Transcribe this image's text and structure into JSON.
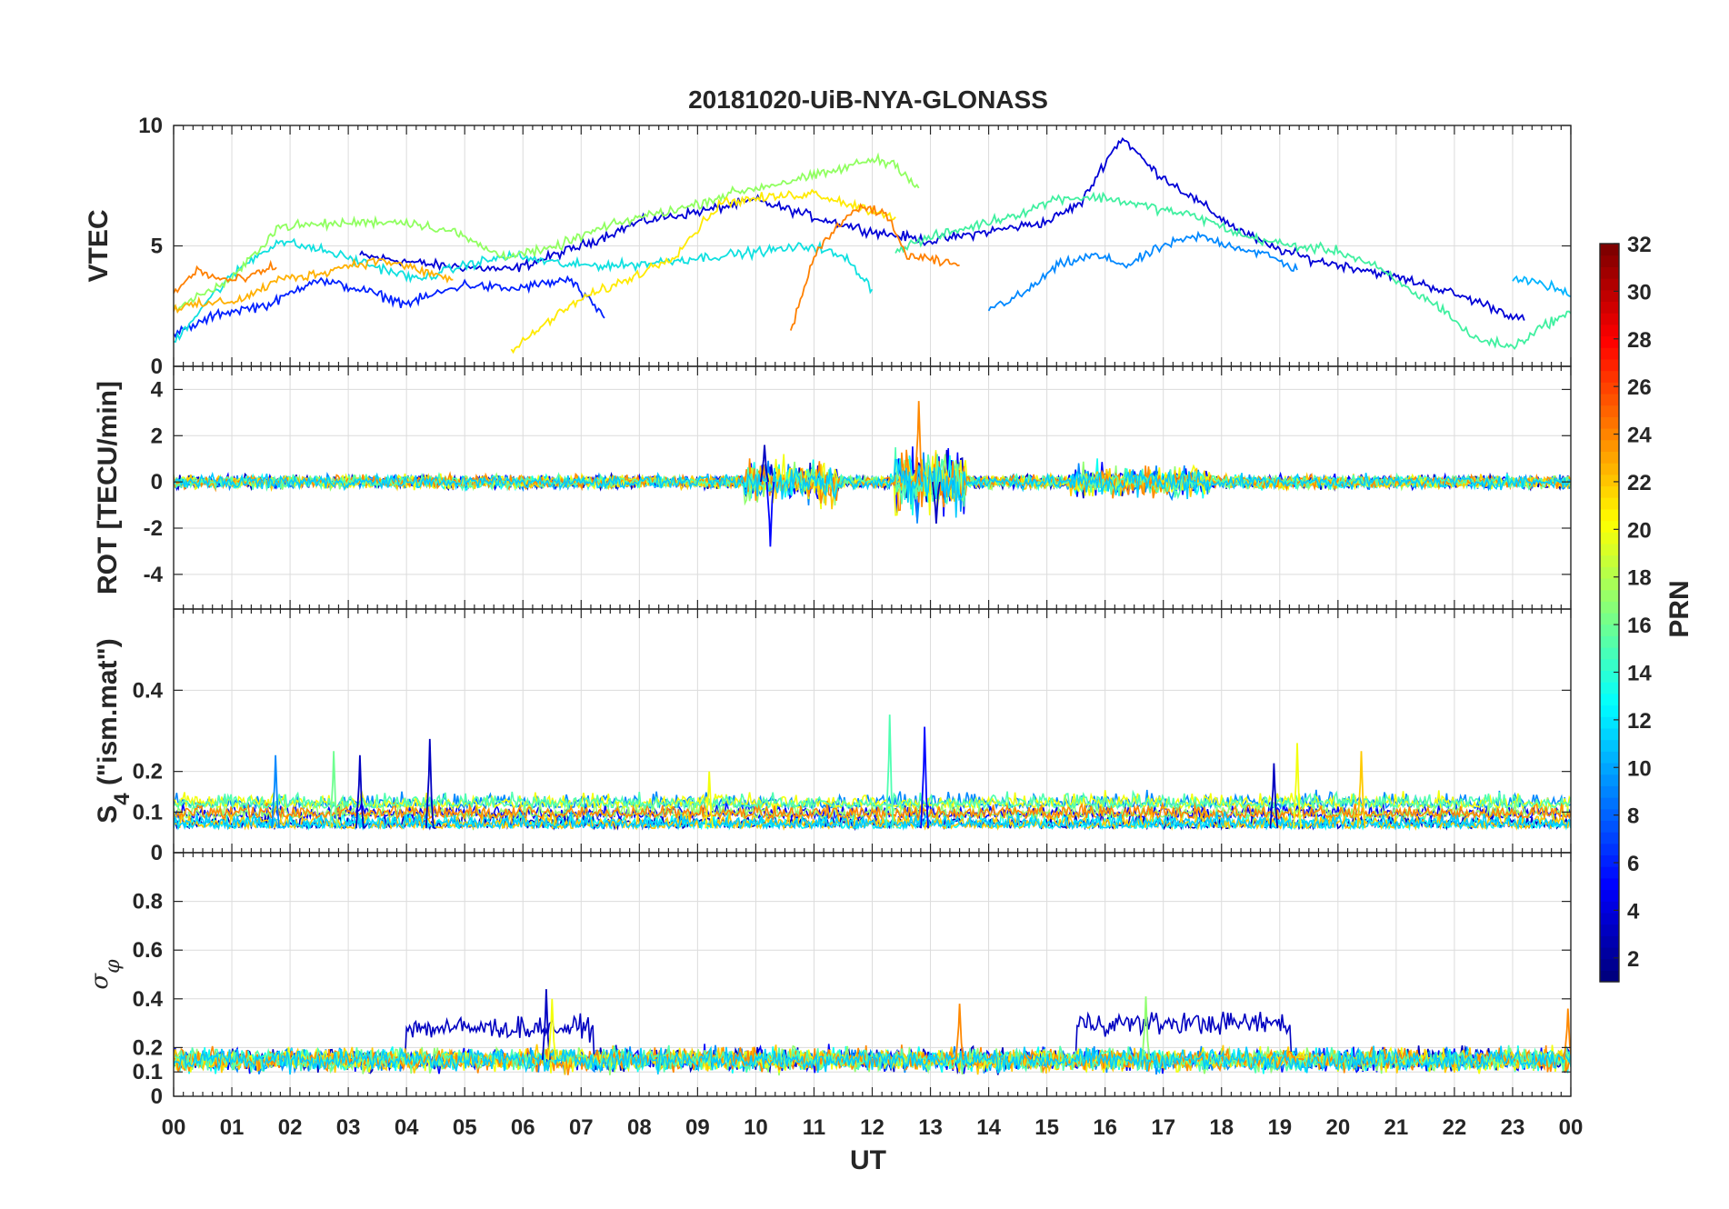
{
  "chart_data": {
    "type": "line",
    "title": "20181020-UiB-NYA-GLONASS",
    "xlabel": "UT",
    "x_ticks": [
      "00",
      "01",
      "02",
      "03",
      "04",
      "05",
      "06",
      "07",
      "08",
      "09",
      "10",
      "11",
      "12",
      "13",
      "14",
      "15",
      "16",
      "17",
      "18",
      "19",
      "20",
      "21",
      "22",
      "23",
      "00"
    ],
    "xlim_hours": [
      0,
      24
    ],
    "grid": true,
    "colorbar": {
      "label": "PRN",
      "range": [
        1,
        32
      ],
      "ticks": [
        "2",
        "4",
        "6",
        "8",
        "10",
        "12",
        "14",
        "16",
        "18",
        "20",
        "22",
        "24",
        "26",
        "28",
        "30",
        "32"
      ],
      "colormap": "jet",
      "placement": "right"
    },
    "panels": [
      {
        "ylabel": "VTEC",
        "ylim": [
          0,
          10
        ],
        "yticks": [
          "0",
          "5",
          "10"
        ],
        "series": [
          {
            "prn": 3,
            "color": "#0000d6",
            "x": [
              3.2,
              4.5,
              5.8,
              7.0,
              8.0,
              9.2,
              10.0,
              11.0,
              12.0,
              13.0,
              14.0,
              15.0,
              15.6,
              16.0,
              16.3,
              16.8,
              17.5,
              18.2,
              18.8,
              19.6,
              20.5,
              21.5,
              22.5,
              23.2
            ],
            "y": [
              4.6,
              4.2,
              4.0,
              5.0,
              6.0,
              6.5,
              6.9,
              6.2,
              5.6,
              5.2,
              5.6,
              6.0,
              6.8,
              8.5,
              9.5,
              8.2,
              7.0,
              5.8,
              5.0,
              4.4,
              4.0,
              3.4,
              2.6,
              1.9
            ]
          },
          {
            "prn": 5,
            "color": "#0020ff",
            "x": [
              0.0,
              0.8,
              1.7,
              2.4,
              3.2,
              4.0,
              5.0,
              5.8,
              6.8,
              7.4
            ],
            "y": [
              1.3,
              2.2,
              2.6,
              3.6,
              3.2,
              2.6,
              3.4,
              3.2,
              3.6,
              2.0
            ]
          },
          {
            "prn": 9,
            "color": "#0088ff",
            "x": [
              14.0,
              14.6,
              15.2,
              15.8,
              16.4,
              17.0,
              17.6,
              18.2,
              18.8,
              19.3
            ],
            "y": [
              2.4,
              3.0,
              4.2,
              4.6,
              4.2,
              5.0,
              5.4,
              5.0,
              4.6,
              4.0
            ]
          },
          {
            "prn": 11,
            "color": "#00b4ff",
            "x": [
              23.0,
              23.3,
              23.7,
              24.0
            ],
            "y": [
              3.7,
              3.5,
              3.3,
              2.9
            ]
          },
          {
            "prn": 13,
            "color": "#10e0e0",
            "x": [
              0.0,
              0.6,
              1.2,
              1.8,
              2.6,
              3.4,
              4.2,
              5.0,
              5.8,
              6.8,
              7.8,
              8.6,
              9.4,
              10.2,
              11.0,
              11.6,
              12.0
            ],
            "y": [
              1.0,
              2.8,
              4.2,
              5.2,
              4.8,
              4.2,
              3.6,
              4.2,
              4.6,
              4.2,
              4.2,
              4.4,
              4.6,
              4.8,
              5.0,
              4.4,
              3.2
            ]
          },
          {
            "prn": 15,
            "color": "#40f0a0",
            "x": [
              12.4,
              12.8,
              13.4,
              14.0,
              14.6,
              15.2,
              16.0,
              16.8,
              17.6,
              18.4,
              19.2,
              20.0,
              20.6,
              21.2,
              21.8,
              22.3,
              23.0,
              23.6,
              24.0
            ],
            "y": [
              4.8,
              5.2,
              5.6,
              6.0,
              6.4,
              7.0,
              7.0,
              6.6,
              6.2,
              5.4,
              5.0,
              4.8,
              4.2,
              3.2,
              2.4,
              1.2,
              0.8,
              1.8,
              2.2
            ]
          },
          {
            "prn": 17,
            "color": "#90ff60",
            "x": [
              0.0,
              1.0,
              1.8,
              2.6,
              3.4,
              4.0,
              4.8,
              5.6,
              6.4,
              7.2,
              8.0,
              8.8,
              9.6,
              10.4,
              11.2,
              12.0,
              12.4,
              12.8
            ],
            "y": [
              2.4,
              3.6,
              5.8,
              5.9,
              6.0,
              6.0,
              5.6,
              4.6,
              4.8,
              5.6,
              6.2,
              6.6,
              7.2,
              7.6,
              8.0,
              8.6,
              8.4,
              7.4
            ]
          },
          {
            "prn": 20,
            "color": "#ffea00",
            "x": [
              5.8,
              6.4,
              7.0,
              7.8,
              8.6,
              9.4,
              10.2,
              11.0,
              11.8,
              12.4
            ],
            "y": [
              0.6,
              1.8,
              2.8,
              3.6,
              4.6,
              6.8,
              7.0,
              7.2,
              6.6,
              6.2
            ]
          },
          {
            "prn": 22,
            "color": "#ffb000",
            "x": [
              0.0,
              0.6,
              1.2,
              1.8,
              2.4,
              3.0,
              3.6,
              4.2,
              4.8
            ],
            "y": [
              2.4,
              2.6,
              2.8,
              3.6,
              3.8,
              4.2,
              4.4,
              4.0,
              3.6
            ]
          },
          {
            "prn": 24,
            "color": "#ff8000",
            "x": [
              0.0,
              0.4,
              0.8,
              1.2,
              1.8,
              10.6,
              11.0,
              11.4,
              11.8,
              12.2,
              12.6,
              13.0,
              13.5
            ],
            "y": [
              3.0,
              4.0,
              3.6,
              3.6,
              4.2,
              1.4,
              4.6,
              5.8,
              6.6,
              6.4,
              4.6,
              4.4,
              4.2
            ]
          }
        ]
      },
      {
        "ylabel": "ROT [TECU/min]",
        "ylim": [
          -5.5,
          5
        ],
        "yticks": [
          "-4",
          "-2",
          "0",
          "2",
          "4"
        ],
        "summary": {
          "baseline": 0,
          "typical_amplitude": 0.3,
          "min": -2.8,
          "max": 3.5
        },
        "disturbed_intervals": [
          {
            "from": 9.8,
            "to": 11.4,
            "amplitude": 1.2
          },
          {
            "from": 12.4,
            "to": 13.6,
            "amplitude": 1.8
          },
          {
            "from": 15.4,
            "to": 17.8,
            "amplitude": 0.9
          }
        ],
        "spikes": [
          {
            "x": 10.25,
            "y": -2.8,
            "prn": 5
          },
          {
            "x": 12.8,
            "y": 3.5,
            "prn": 24
          },
          {
            "x": 13.1,
            "y": -1.8,
            "prn": 3
          },
          {
            "x": 10.15,
            "y": 1.6,
            "prn": 3
          }
        ]
      },
      {
        "ylabel": "S4 (\"ism.mat\")",
        "ylabel_main": "S",
        "ylabel_sub": "4",
        "ylabel_rest": " (\"ism.mat\")",
        "ylim": [
          0,
          0.6
        ],
        "yticks": [
          "0",
          "0.1",
          "0.2",
          "0.4"
        ],
        "summary": {
          "baseline": 0.06,
          "typical_range": [
            0.03,
            0.15
          ]
        },
        "peaks": [
          {
            "x": 1.75,
            "y": 0.24,
            "prn": 9
          },
          {
            "x": 2.75,
            "y": 0.25,
            "prn": 16
          },
          {
            "x": 3.2,
            "y": 0.24,
            "prn": 3
          },
          {
            "x": 4.4,
            "y": 0.28,
            "prn": 3
          },
          {
            "x": 9.2,
            "y": 0.2,
            "prn": 20
          },
          {
            "x": 12.3,
            "y": 0.34,
            "prn": 15
          },
          {
            "x": 12.9,
            "y": 0.31,
            "prn": 5
          },
          {
            "x": 19.3,
            "y": 0.27,
            "prn": 20
          },
          {
            "x": 20.4,
            "y": 0.25,
            "prn": 22
          },
          {
            "x": 18.9,
            "y": 0.22,
            "prn": 3
          }
        ]
      },
      {
        "ylabel": "σ φ",
        "ylabel_main": "σ",
        "ylabel_sub": "φ",
        "ylim": [
          0,
          1
        ],
        "yticks": [
          "0",
          "0.1",
          "0.2",
          "0.4",
          "0.6",
          "0.8"
        ],
        "summary": {
          "baseline": 0.15,
          "typical_range": [
            0.08,
            0.22
          ]
        },
        "elevated_intervals": [
          {
            "from": 4.0,
            "to": 7.2,
            "level": 0.28,
            "prn": 3
          },
          {
            "from": 15.5,
            "to": 19.2,
            "level": 0.3,
            "prn": 3
          }
        ],
        "peaks": [
          {
            "x": 6.4,
            "y": 0.44,
            "prn": 3
          },
          {
            "x": 6.5,
            "y": 0.4,
            "prn": 20
          },
          {
            "x": 13.5,
            "y": 0.38,
            "prn": 24
          },
          {
            "x": 16.7,
            "y": 0.41,
            "prn": 17
          },
          {
            "x": 23.95,
            "y": 0.36,
            "prn": 24
          }
        ]
      }
    ]
  }
}
